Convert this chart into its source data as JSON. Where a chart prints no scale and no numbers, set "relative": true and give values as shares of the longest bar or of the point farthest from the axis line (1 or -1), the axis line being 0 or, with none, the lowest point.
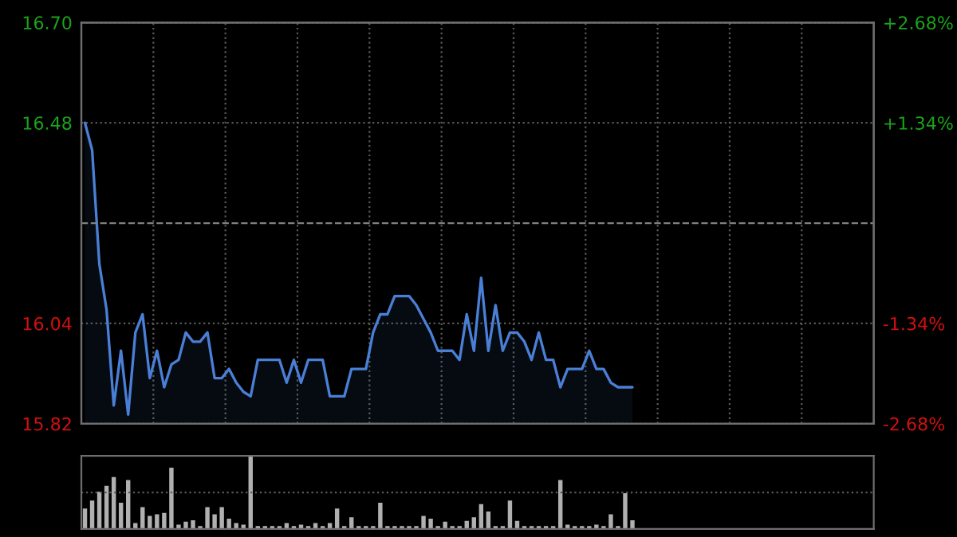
{
  "chart_data": [
    {
      "type": "area",
      "tick_labels": "y",
      "grid": true,
      "legend": false,
      "categories": [
        null,
        null,
        null,
        null,
        null,
        null,
        null,
        null,
        null,
        null,
        null,
        null,
        null,
        null,
        null,
        null,
        null,
        null,
        null,
        null,
        null,
        null,
        null,
        null,
        null,
        null,
        null,
        null,
        null,
        null,
        null,
        null,
        null,
        null,
        null,
        null,
        null,
        null,
        null,
        null,
        null,
        null,
        null,
        null,
        null,
        null,
        null,
        null,
        null,
        null,
        null,
        null,
        null,
        null,
        null,
        null,
        null,
        null,
        null,
        null,
        null,
        null,
        null,
        null,
        null,
        null,
        null,
        null,
        null,
        null,
        null,
        null,
        null,
        null,
        null,
        null,
        null
      ],
      "ylim": [
        15.82,
        16.7
      ],
      "yticks": [
        {
          "value": 15.82,
          "label": "15.82"
        },
        {
          "value": 16.04,
          "label": "16.04"
        },
        {
          "value": 16.48,
          "label": "16.48"
        },
        {
          "value": 16.7,
          "label": "16.70"
        }
      ],
      "y2lim": [
        -2.68,
        2.68
      ],
      "y2ticks": [
        {
          "value": -2.68,
          "label": "-2.68%"
        },
        {
          "value": -1.34,
          "label": "-1.34%"
        },
        {
          "value": 1.34,
          "label": "+1.34%"
        },
        {
          "value": 2.68,
          "label": "+2.68%"
        }
      ],
      "ref_lines": [
        {
          "axis": "y",
          "value": 16.26,
          "line_style": "dashed",
          "color": "#808080"
        }
      ],
      "series": [
        {
          "color": "#4a7fd6",
          "values": [
            16.48,
            16.42,
            16.17,
            16.07,
            15.86,
            15.98,
            15.84,
            16.02,
            16.06,
            15.92,
            15.98,
            15.9,
            15.95,
            15.96,
            16.02,
            16.0,
            16.0,
            16.02,
            15.92,
            15.92,
            15.94,
            15.91,
            15.89,
            15.88,
            15.96,
            15.96,
            15.96,
            15.96,
            15.91,
            15.96,
            15.91,
            15.96,
            15.96,
            15.96,
            15.88,
            15.88,
            15.88,
            15.94,
            15.94,
            15.94,
            16.02,
            16.06,
            16.06,
            16.1,
            16.1,
            16.1,
            16.08,
            16.05,
            16.02,
            15.98,
            15.98,
            15.98,
            15.96,
            16.06,
            15.98,
            16.14,
            15.98,
            16.08,
            15.98,
            16.02,
            16.02,
            16.0,
            15.96,
            16.02,
            15.96,
            15.96,
            15.9,
            15.94,
            15.94,
            15.94,
            15.98,
            15.94,
            15.94,
            15.91,
            15.9,
            15.9,
            15.9
          ]
        }
      ]
    },
    {
      "type": "bar",
      "relative": true,
      "tick_labels": false,
      "legend": false,
      "ref_lines": [
        {
          "axis": "y",
          "value": 0.5,
          "line_style": "dotted",
          "color": "#5a5a5a"
        }
      ],
      "categories": [
        null,
        null,
        null,
        null,
        null,
        null,
        null,
        null,
        null,
        null,
        null,
        null,
        null,
        null,
        null,
        null,
        null,
        null,
        null,
        null,
        null,
        null,
        null,
        null,
        null,
        null,
        null,
        null,
        null,
        null,
        null,
        null,
        null,
        null,
        null,
        null,
        null,
        null,
        null,
        null,
        null,
        null,
        null,
        null,
        null,
        null,
        null,
        null,
        null,
        null,
        null,
        null,
        null,
        null,
        null,
        null,
        null,
        null,
        null,
        null,
        null,
        null,
        null,
        null,
        null,
        null,
        null,
        null,
        null,
        null,
        null,
        null,
        null,
        null,
        null,
        null,
        null
      ],
      "series": [
        {
          "color": "#b0b0b0",
          "values": [
            0.28,
            0.39,
            0.51,
            0.59,
            0.71,
            0.36,
            0.67,
            0.08,
            0.3,
            0.18,
            0.2,
            0.22,
            0.84,
            0.06,
            0.1,
            0.12,
            0.04,
            0.3,
            0.2,
            0.3,
            0.14,
            0.08,
            0.06,
            1.0,
            0.04,
            0.04,
            0.04,
            0.04,
            0.08,
            0.04,
            0.06,
            0.04,
            0.08,
            0.04,
            0.08,
            0.28,
            0.04,
            0.16,
            0.04,
            0.04,
            0.04,
            0.36,
            0.04,
            0.04,
            0.04,
            0.04,
            0.04,
            0.18,
            0.14,
            0.04,
            0.1,
            0.04,
            0.04,
            0.11,
            0.16,
            0.34,
            0.24,
            0.04,
            0.04,
            0.39,
            0.11,
            0.04,
            0.04,
            0.04,
            0.04,
            0.04,
            0.67,
            0.06,
            0.04,
            0.04,
            0.04,
            0.06,
            0.04,
            0.2,
            0.04,
            0.49,
            0.12
          ]
        }
      ]
    }
  ]
}
